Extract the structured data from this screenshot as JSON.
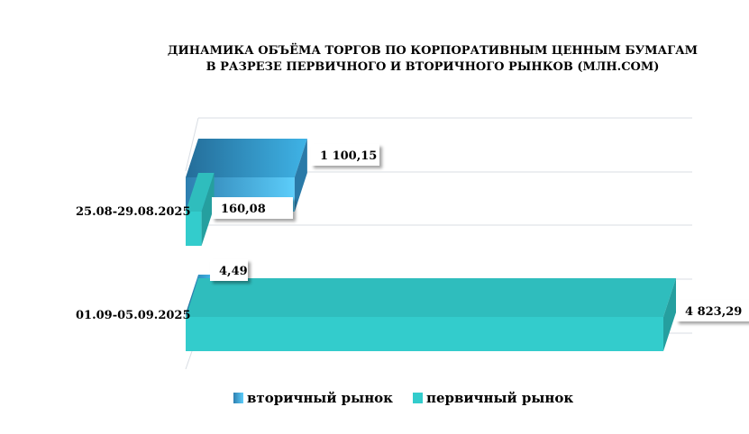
{
  "chart_data": {
    "type": "bar",
    "orientation": "horizontal",
    "style": "3d",
    "title": "ДИНАМИКА ОБЪЁМА ТОРГОВ ПО КОРПОРАТИВНЫМ ЦЕННЫМ БУМАГАМ В РАЗРЕЗЕ ПЕРВИЧНОГО И ВТОРИЧНОГО РЫНКОВ (МЛН.СОМ)",
    "title_lines": [
      "ДИНАМИКА ОБЪЁМА ТОРГОВ ПО КОРПОРАТИВНЫМ ЦЕННЫМ БУМАГАМ",
      "В РАЗРЕЗЕ ПЕРВИЧНОГО И ВТОРИЧНОГО РЫНКОВ  (МЛН.СОМ)"
    ],
    "categories": [
      "25.08-29.08.2025",
      "01.09-05.09.2025"
    ],
    "series": [
      {
        "name": "вторичный рынок",
        "values": [
          1100.15,
          4.49
        ],
        "labels": [
          "1 100,15",
          "4,49"
        ],
        "color": "#3a9fd8"
      },
      {
        "name": "первичный рынок",
        "values": [
          160.08,
          4823.29
        ],
        "labels": [
          "160,08",
          "4 823,29"
        ],
        "color": "#33cccc"
      }
    ],
    "xlim": [
      0,
      4823.29
    ],
    "grid": true,
    "legend_position": "bottom"
  }
}
